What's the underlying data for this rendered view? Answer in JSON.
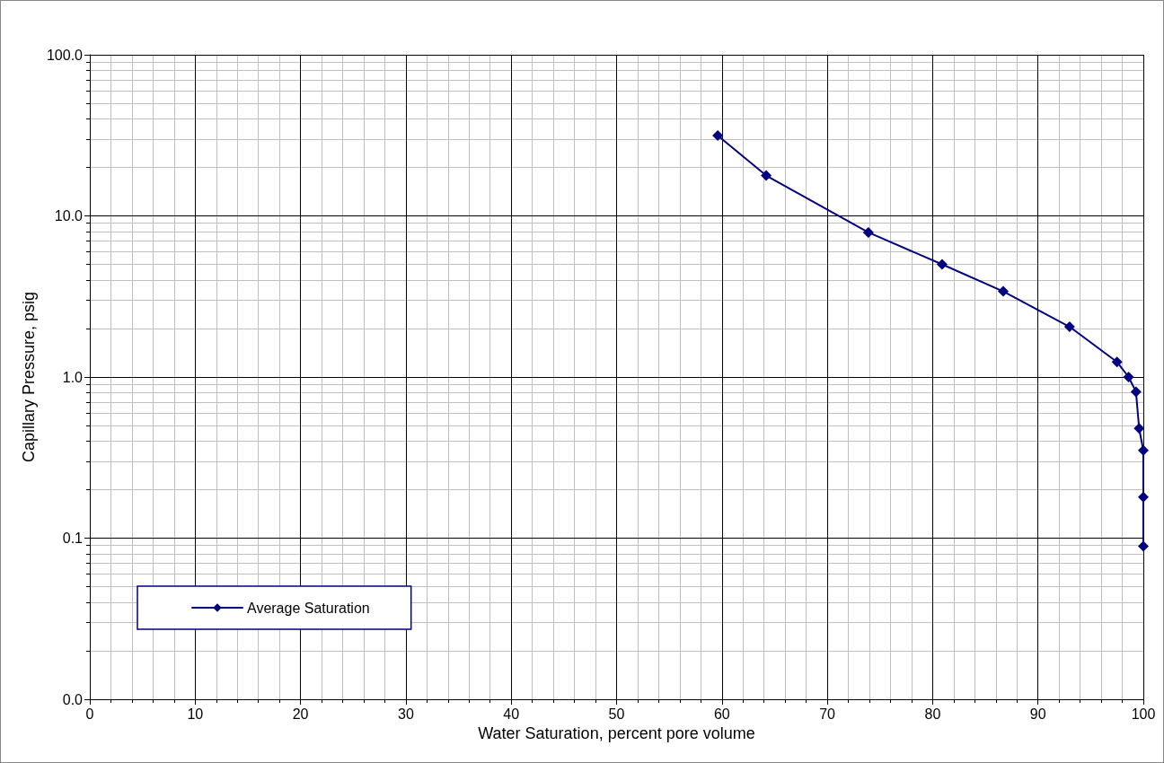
{
  "chart_data": {
    "type": "line",
    "xlabel": "Water Saturation, percent pore volume",
    "ylabel": "Capillary Pressure, psig",
    "x": [
      59.6,
      64.2,
      73.9,
      80.9,
      86.7,
      93.0,
      97.5,
      98.6,
      99.3,
      99.6,
      100,
      100,
      100
    ],
    "series": [
      {
        "name": "Average Saturation",
        "color": "#000080",
        "values": [
          31.5,
          17.8,
          7.9,
          5.0,
          3.4,
          2.05,
          1.24,
          1.0,
          0.81,
          0.48,
          0.35,
          0.18,
          0.089
        ]
      }
    ],
    "xlim": [
      0,
      100
    ],
    "xticks": [
      0,
      10,
      20,
      30,
      40,
      50,
      60,
      70,
      80,
      90,
      100
    ],
    "ylim": [
      0.01,
      100
    ],
    "yticks": [
      {
        "value": 0.01,
        "label": "0.0"
      },
      {
        "value": 0.1,
        "label": "0.1"
      },
      {
        "value": 1,
        "label": "1.0"
      },
      {
        "value": 10,
        "label": "10.0"
      },
      {
        "value": 100,
        "label": "100.0"
      }
    ],
    "log": "y",
    "grid": true,
    "legend": "bottom left",
    "marker": "diamond",
    "line_style": "solid"
  }
}
